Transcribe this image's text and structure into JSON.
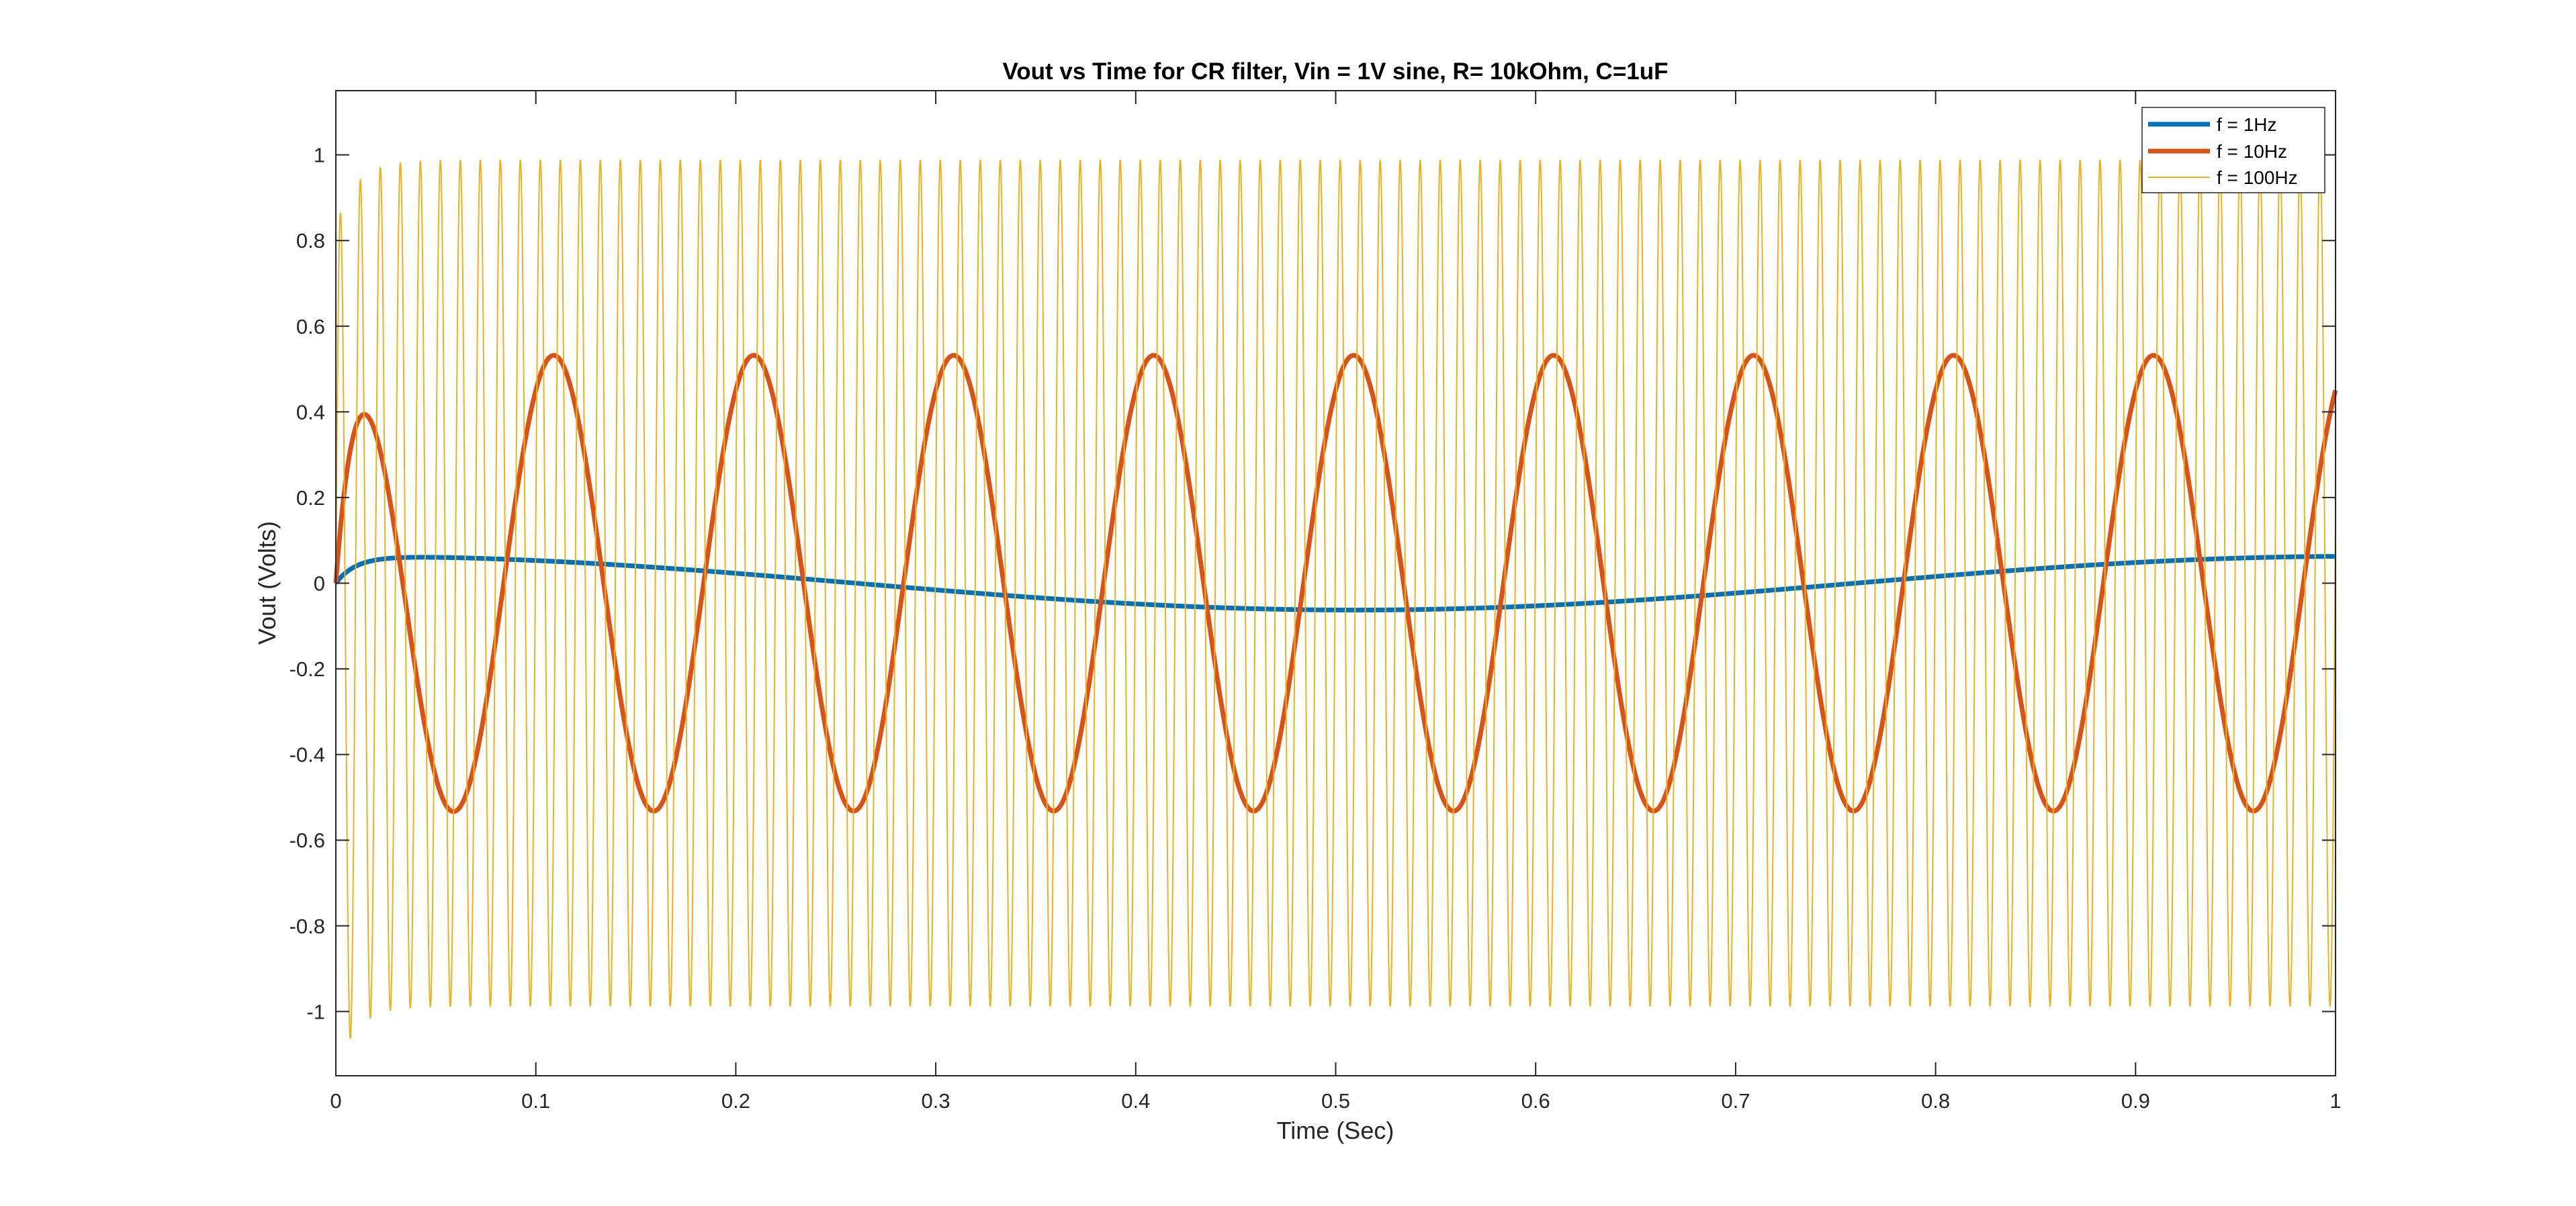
{
  "chart_data": {
    "type": "line",
    "title": "Vout vs Time for CR filter, Vin = 1V sine, R= 10kOhm, C=1uF",
    "xlabel": "Time (Sec)",
    "ylabel": "Vout (Volts)",
    "xlim": [
      0,
      1
    ],
    "ylim": [
      -1.15,
      1.15
    ],
    "x_ticks": [
      "0",
      "0.1",
      "0.2",
      "0.3",
      "0.4",
      "0.5",
      "0.6",
      "0.7",
      "0.8",
      "0.9",
      "1"
    ],
    "x_tick_values": [
      0,
      0.1,
      0.2,
      0.3,
      0.4,
      0.5,
      0.6,
      0.7,
      0.8,
      0.9,
      1
    ],
    "y_ticks": [
      "-1",
      "-0.8",
      "-0.6",
      "-0.4",
      "-0.2",
      "0",
      "0.2",
      "0.4",
      "0.6",
      "0.8",
      "1"
    ],
    "y_tick_values": [
      -1,
      -0.8,
      -0.6,
      -0.4,
      -0.2,
      0,
      0.2,
      0.4,
      0.6,
      0.8,
      1
    ],
    "grid": false,
    "legend_position": "top-right",
    "series": [
      {
        "name": "f = 1Hz",
        "color": "#0072BD",
        "frequency_hz": 1,
        "steady_amplitude": 0.0627,
        "description": "sin wave peaking ~0.06 at t~0.04, trough ~-0.06 at t~0.54",
        "points": [
          [
            0,
            0
          ],
          [
            0.005,
            0.026
          ],
          [
            0.01,
            0.042
          ],
          [
            0.02,
            0.057
          ],
          [
            0.04,
            0.062
          ],
          [
            0.1,
            0.055
          ],
          [
            0.2,
            0.031
          ],
          [
            0.25,
            0.017
          ],
          [
            0.3,
            0.0
          ],
          [
            0.4,
            -0.037
          ],
          [
            0.5,
            -0.061
          ],
          [
            0.55,
            -0.063
          ],
          [
            0.6,
            -0.055
          ],
          [
            0.7,
            -0.031
          ],
          [
            0.8,
            0.013
          ],
          [
            0.9,
            0.047
          ],
          [
            1.0,
            0.062
          ]
        ]
      },
      {
        "name": "f = 10Hz",
        "color": "#D95319",
        "frequency_hz": 10,
        "steady_amplitude": 0.532,
        "first_peak": [
          0.016,
          0.395
        ],
        "peaks": [
          [
            0.11,
            0.532
          ],
          [
            0.21,
            0.532
          ],
          [
            0.31,
            0.532
          ],
          [
            0.41,
            0.532
          ],
          [
            0.51,
            0.532
          ],
          [
            0.61,
            0.532
          ],
          [
            0.71,
            0.532
          ],
          [
            0.81,
            0.532
          ],
          [
            0.91,
            0.532
          ]
        ],
        "troughs": [
          [
            0.06,
            -0.532
          ],
          [
            0.16,
            -0.532
          ],
          [
            0.26,
            -0.532
          ],
          [
            0.36,
            -0.532
          ],
          [
            0.46,
            -0.532
          ],
          [
            0.56,
            -0.532
          ],
          [
            0.66,
            -0.532
          ],
          [
            0.76,
            -0.532
          ],
          [
            0.86,
            -0.532
          ],
          [
            0.96,
            -0.532
          ]
        ],
        "end_value": [
          1.0,
          0.45
        ]
      },
      {
        "name": "f = 100Hz",
        "color": "#EDB120",
        "frequency_hz": 100,
        "steady_amplitude": 0.988,
        "first_peak": [
          0.002,
          0.86
        ],
        "first_trough": [
          0.007,
          -1.06
        ],
        "peak_value": 0.988,
        "trough_value": -0.988
      }
    ]
  }
}
